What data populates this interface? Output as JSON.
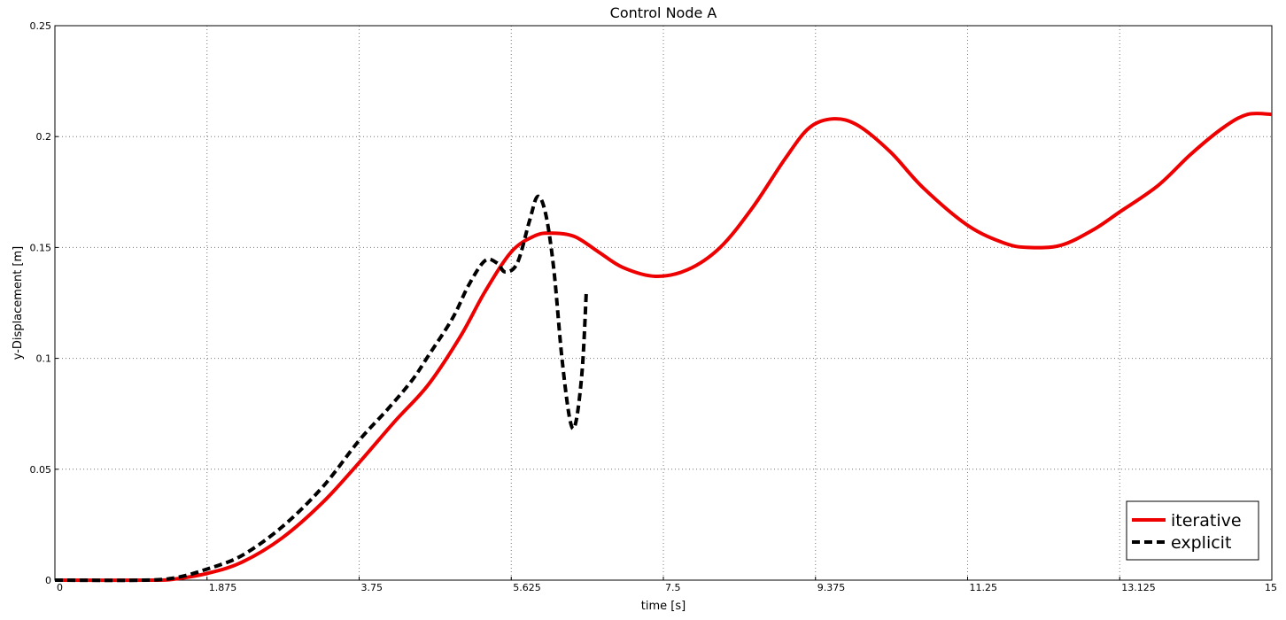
{
  "chart_data": {
    "type": "line",
    "title": "Control Node A",
    "xlabel": "time [s]",
    "ylabel": "y-Displacement [m]",
    "xlim": [
      0,
      15
    ],
    "ylim": [
      0,
      0.25
    ],
    "x_ticks": [
      "0",
      "1.875",
      "3.75",
      "5.625",
      "7.5",
      "9.375",
      "11.25",
      "13.125",
      "15"
    ],
    "y_ticks": [
      "0",
      "0.05",
      "0.1",
      "0.15",
      "0.2",
      "0.25"
    ],
    "grid": true,
    "legend_position": "bottom-right",
    "series": [
      {
        "name": "iterative",
        "color": "#ee0000",
        "style": "solid",
        "points": [
          [
            0,
            0
          ],
          [
            1.2,
            0
          ],
          [
            1.5,
            0.0006
          ],
          [
            1.875,
            0.003
          ],
          [
            2.3,
            0.008
          ],
          [
            2.8,
            0.019
          ],
          [
            3.3,
            0.035
          ],
          [
            3.75,
            0.053
          ],
          [
            4.2,
            0.072
          ],
          [
            4.6,
            0.088
          ],
          [
            5.0,
            0.11
          ],
          [
            5.3,
            0.13
          ],
          [
            5.625,
            0.148
          ],
          [
            5.9,
            0.155
          ],
          [
            6.1,
            0.1565
          ],
          [
            6.4,
            0.155
          ],
          [
            6.7,
            0.148
          ],
          [
            7.0,
            0.141
          ],
          [
            7.4,
            0.137
          ],
          [
            7.8,
            0.14
          ],
          [
            8.2,
            0.15
          ],
          [
            8.6,
            0.168
          ],
          [
            9.0,
            0.19
          ],
          [
            9.3,
            0.204
          ],
          [
            9.6,
            0.208
          ],
          [
            9.9,
            0.205
          ],
          [
            10.3,
            0.193
          ],
          [
            10.7,
            0.177
          ],
          [
            11.25,
            0.16
          ],
          [
            11.7,
            0.152
          ],
          [
            12.0,
            0.15
          ],
          [
            12.4,
            0.151
          ],
          [
            12.8,
            0.158
          ],
          [
            13.125,
            0.166
          ],
          [
            13.6,
            0.178
          ],
          [
            14.0,
            0.192
          ],
          [
            14.4,
            0.204
          ],
          [
            14.7,
            0.21
          ],
          [
            15,
            0.21
          ]
        ]
      },
      {
        "name": "explicit",
        "color": "#000000",
        "style": "dashed",
        "points": [
          [
            0,
            0
          ],
          [
            1.1,
            0
          ],
          [
            1.5,
            0.0012
          ],
          [
            1.875,
            0.005
          ],
          [
            2.3,
            0.011
          ],
          [
            2.8,
            0.024
          ],
          [
            3.3,
            0.042
          ],
          [
            3.75,
            0.063
          ],
          [
            4.1,
            0.077
          ],
          [
            4.4,
            0.09
          ],
          [
            4.6,
            0.101
          ],
          [
            4.9,
            0.118
          ],
          [
            5.1,
            0.133
          ],
          [
            5.3,
            0.144
          ],
          [
            5.45,
            0.143
          ],
          [
            5.55,
            0.139
          ],
          [
            5.7,
            0.143
          ],
          [
            5.85,
            0.162
          ],
          [
            5.95,
            0.173
          ],
          [
            6.05,
            0.165
          ],
          [
            6.15,
            0.14
          ],
          [
            6.25,
            0.1
          ],
          [
            6.35,
            0.072
          ],
          [
            6.42,
            0.071
          ],
          [
            6.5,
            0.095
          ],
          [
            6.55,
            0.13
          ]
        ]
      }
    ]
  }
}
